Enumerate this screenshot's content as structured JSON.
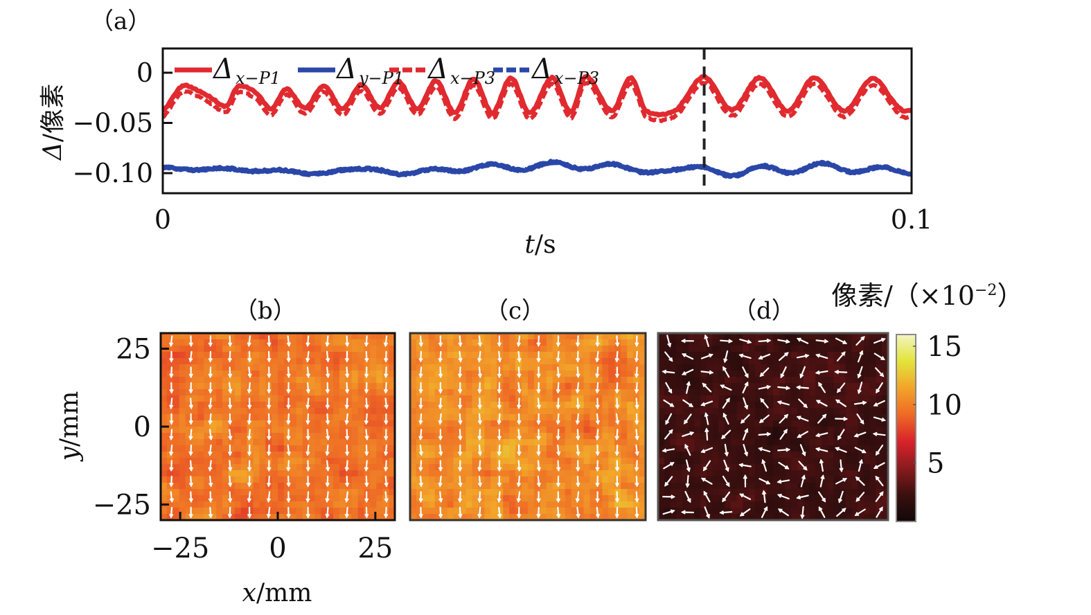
{
  "chart_data": [
    {
      "panel": "(a)",
      "type": "line",
      "title": "",
      "xlabel_var": "t",
      "xlabel_unit": "s",
      "ylabel_var": "Δ",
      "ylabel_unit": "像素",
      "xlim": [
        0,
        0.1
      ],
      "ylim": [
        -0.117,
        0.024
      ],
      "xticks": [
        0,
        0.1
      ],
      "xtick_labels": [
        "0",
        "0.1"
      ],
      "yticks": [
        0,
        -0.05,
        -0.1
      ],
      "ytick_labels": [
        "0",
        "−0.05",
        "−0.10"
      ],
      "grid": false,
      "legend_position": "top-left, inside, horizontal",
      "vertical_marker": {
        "x": 0.0723,
        "style": "dashed",
        "color": "#222222"
      },
      "series": [
        {
          "name": "Δ",
          "subscript": "x−P1",
          "color": "#e02a2f",
          "style": "solid",
          "t": [
            0,
            0.0025,
            0.0045,
            0.0065,
            0.0085,
            0.01,
            0.0125,
            0.0145,
            0.0165,
            0.019,
            0.0215,
            0.024,
            0.0265,
            0.029,
            0.0315,
            0.034,
            0.0365,
            0.039,
            0.0415,
            0.044,
            0.0465,
            0.049,
            0.052,
            0.0545,
            0.0565,
            0.06,
            0.0625,
            0.0645,
            0.0685,
            0.0723,
            0.076,
            0.0797,
            0.0835,
            0.087,
            0.091,
            0.0948,
            0.0985,
            0.1
          ],
          "y": [
            -0.038,
            -0.014,
            -0.017,
            -0.025,
            -0.033,
            -0.014,
            -0.02,
            -0.036,
            -0.016,
            -0.035,
            -0.013,
            -0.036,
            -0.012,
            -0.035,
            -0.009,
            -0.036,
            -0.008,
            -0.04,
            -0.006,
            -0.04,
            -0.005,
            -0.04,
            -0.005,
            -0.039,
            -0.004,
            -0.038,
            -0.005,
            -0.038,
            -0.037,
            -0.004,
            -0.037,
            -0.005,
            -0.038,
            -0.005,
            -0.038,
            -0.006,
            -0.036,
            -0.037
          ]
        },
        {
          "name": "Δ",
          "subscript": "y−P1",
          "color": "#2a47a8",
          "style": "solid",
          "t": [
            0,
            0.004,
            0.008,
            0.012,
            0.016,
            0.02,
            0.024,
            0.028,
            0.032,
            0.036,
            0.04,
            0.044,
            0.048,
            0.052,
            0.056,
            0.06,
            0.064,
            0.068,
            0.0723,
            0.076,
            0.08,
            0.084,
            0.088,
            0.092,
            0.096,
            0.1
          ],
          "y": [
            -0.094,
            -0.097,
            -0.095,
            -0.098,
            -0.097,
            -0.101,
            -0.097,
            -0.096,
            -0.101,
            -0.096,
            -0.098,
            -0.091,
            -0.097,
            -0.089,
            -0.096,
            -0.091,
            -0.099,
            -0.097,
            -0.094,
            -0.103,
            -0.093,
            -0.1,
            -0.09,
            -0.099,
            -0.094,
            -0.101
          ]
        },
        {
          "name": "Δ",
          "subscript": "x−P3",
          "color": "#e02a2f",
          "style": "dashed",
          "offset_from_x_P1": -0.006
        },
        {
          "name": "Δ",
          "subscript": "x−P3",
          "color": "#2a47a8",
          "style": "dashed",
          "offset_from_y_P1": 0.0
        }
      ]
    },
    {
      "panel": "(b)",
      "type": "heatmap",
      "xlabel_var": "x",
      "xlabel_unit": "mm",
      "ylabel_var": "y",
      "ylabel_unit": "mm",
      "xlim": [
        -30,
        30
      ],
      "ylim": [
        -30,
        30
      ],
      "xticks": [
        -25,
        0,
        25
      ],
      "xtick_labels": [
        "−25",
        "0",
        "25"
      ],
      "yticks": [
        25,
        0,
        -25
      ],
      "ytick_labels": [
        "25",
        "0",
        "−25"
      ],
      "mean_value": 9.6,
      "value_spread": 1.4,
      "quiver": {
        "grid": [
          12,
          12
        ],
        "direction": "down",
        "uniform": true
      }
    },
    {
      "panel": "(c)",
      "type": "heatmap",
      "xlim": [
        -30,
        30
      ],
      "ylim": [
        -30,
        30
      ],
      "mean_value": 10.4,
      "value_spread": 1.7,
      "quiver": {
        "grid": [
          12,
          12
        ],
        "direction": "down",
        "uniform": true
      }
    },
    {
      "panel": "(d)",
      "type": "heatmap",
      "xlim": [
        -30,
        30
      ],
      "ylim": [
        -30,
        30
      ],
      "mean_value": 2.3,
      "value_spread": 0.9,
      "quiver": {
        "grid": [
          12,
          12
        ],
        "direction": "random",
        "uniform": false
      }
    }
  ],
  "colorbar": {
    "title": "像素/（×10",
    "title_exp": "−2",
    "title_close": "）",
    "range": [
      0,
      16
    ],
    "ticks": [
      15,
      10,
      5
    ],
    "tick_labels": [
      "15",
      "10",
      "5"
    ],
    "colormap": [
      "#120808",
      "#3b0f0f",
      "#8a1b1e",
      "#d9232a",
      "#ee6a25",
      "#f2a42a",
      "#e2e43a",
      "#f3f4c2"
    ]
  },
  "panel_labels": {
    "a": "（a）",
    "b": "（b）",
    "c": "（c）",
    "d": "（d）"
  }
}
